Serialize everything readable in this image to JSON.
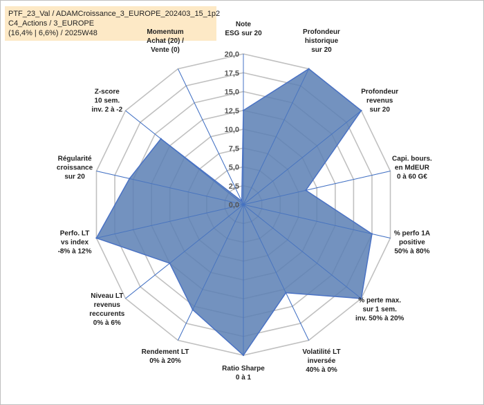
{
  "header": {
    "line1": "PTF_23_Val / ADAMCroissance_3_EUROPE_202403_15_1p2",
    "line2": "C4_Actions / 3_EUROPE",
    "line3": "(16,4% | 6,6%) / 2025W48"
  },
  "colors": {
    "fill": "#5b7fb4",
    "stroke": "#4a72c4",
    "grid": "#c0c0c0",
    "spoke": "#4472c4"
  },
  "chart_data": {
    "type": "radar",
    "rmin": 0,
    "rmax": 20,
    "ticks": [
      0,
      2.5,
      5,
      7.5,
      10,
      12.5,
      15,
      17.5,
      20
    ],
    "tick_labels": [
      "0,0",
      "2,5",
      "5,0",
      "7,5",
      "10,0",
      "12,5",
      "15,0",
      "17,5",
      "20,0"
    ],
    "axes": [
      {
        "label": [
          "Note",
          "ESG sur 20"
        ],
        "value": 12.5
      },
      {
        "label": [
          "Profondeur",
          "historique",
          "sur 20"
        ],
        "value": 20
      },
      {
        "label": [
          "Profondeur",
          "revenus",
          "sur 20"
        ],
        "value": 20
      },
      {
        "label": [
          "Capi. bours.",
          "en MdEUR",
          "0 à 60 G€"
        ],
        "value": 8.5
      },
      {
        "label": [
          "% perfo 1A",
          "positive",
          "50% à 80%"
        ],
        "value": 17.5
      },
      {
        "label": [
          "% perte max.",
          "sur 1 sem.",
          "inv. 50% à 20%"
        ],
        "value": 20
      },
      {
        "label": [
          "Volatilité LT",
          "inversée",
          "40% à 0%"
        ],
        "value": 13
      },
      {
        "label": [
          "Ratio Sharpe",
          "0 à 1"
        ],
        "value": 20
      },
      {
        "label": [
          "Rendement LT",
          "0% à 20%"
        ],
        "value": 15.5
      },
      {
        "label": [
          "Niveau LT",
          "revenus",
          "reccurents",
          "0% à 6%"
        ],
        "value": 12.5
      },
      {
        "label": [
          "Perfo. LT",
          "vs index",
          "-8% à 12%"
        ],
        "value": 20
      },
      {
        "label": [
          "Régularité",
          "croissance",
          "sur 20"
        ],
        "value": 15.5
      },
      {
        "label": [
          "Z-score",
          "10 sem.",
          "inv. 2 à -2"
        ],
        "value": 14
      },
      {
        "label": [
          "Momentum",
          "Achat (20) /",
          "Vente (0)"
        ],
        "value": 0.5
      }
    ]
  }
}
